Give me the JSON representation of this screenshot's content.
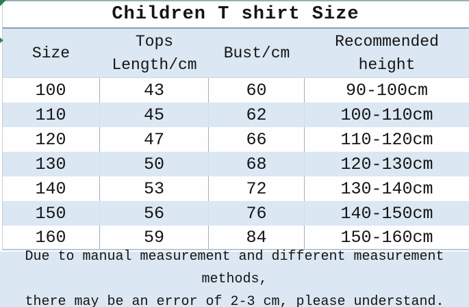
{
  "title": "Children T shirt Size",
  "table": {
    "headers": [
      "Size",
      "Tops\nLength/cm",
      "Bust/cm",
      "Recommended\nheight"
    ],
    "rows": [
      [
        "100",
        "43",
        "60",
        "90-100cm"
      ],
      [
        "110",
        "45",
        "62",
        "100-110cm"
      ],
      [
        "120",
        "47",
        "66",
        "110-120cm"
      ],
      [
        "130",
        "50",
        "68",
        "120-130cm"
      ],
      [
        "140",
        "53",
        "72",
        "130-140cm"
      ],
      [
        "150",
        "56",
        "76",
        "140-150cm"
      ],
      [
        "160",
        "59",
        "84",
        "150-160cm"
      ]
    ]
  },
  "footer": {
    "note": "Due to manual measurement and different measurement methods,\nthere may be an error of 2-3 cm, please understand."
  },
  "colors": {
    "row_highlight_blue": "#dbe7f2",
    "row_base_white": "#fefefe",
    "text": "#141414",
    "top_edge_border": "#93b2b4",
    "title_underline": "#87a0ae",
    "cell_border": "#9fafbe",
    "excel_artifact_green": "#2f7d4f"
  }
}
